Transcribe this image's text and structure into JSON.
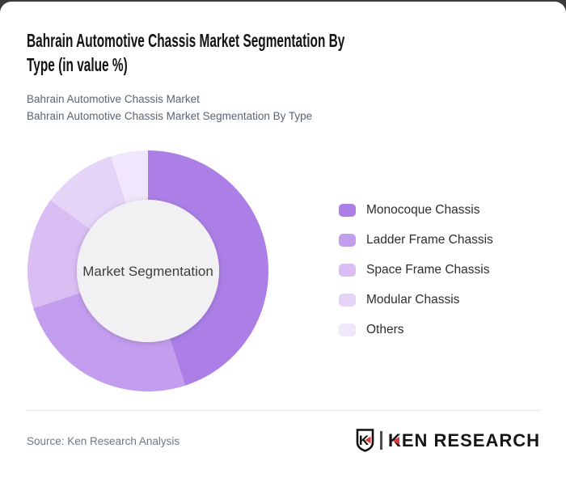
{
  "window": {
    "top_bar_color": "#3a3a3a",
    "card_color": "#ffffff"
  },
  "header": {
    "title_lines": [
      "Bahrain Automotive Chassis Market Segmentation By",
      "Type (in value %)"
    ],
    "subtitle_lines": [
      "Bahrain Automotive Chassis Market",
      "Bahrain Automotive Chassis Market Segmentation By Type"
    ]
  },
  "chart_data": {
    "type": "pie",
    "subtype": "donut",
    "title": "Bahrain Automotive Chassis Market Segmentation By Type (in value %)",
    "center_label": "Market Segmentation",
    "labels": [
      "Monocoque Chassis",
      "Ladder Frame Chassis",
      "Space Frame Chassis",
      "Modular Chassis",
      "Others"
    ],
    "values": [
      45,
      25,
      15,
      10,
      5
    ],
    "unit": "% of value",
    "colors": [
      "#ab7fe6",
      "#c39dee",
      "#d9bdf3",
      "#e6d3f8",
      "#f1e7fc"
    ],
    "start_angle_deg": 0,
    "direction": "clockwise",
    "inner_radius_ratio": 0.59,
    "hole_fill": "#f1f0f2",
    "hole_text_color": "#3d3d3d",
    "legend_position": "right"
  },
  "footer": {
    "source": "Source: Ken Research Analysis",
    "logo": {
      "badge_letter": "K",
      "brand": "KEN RESEARCH",
      "accent_red": "#dd3a3d"
    }
  }
}
